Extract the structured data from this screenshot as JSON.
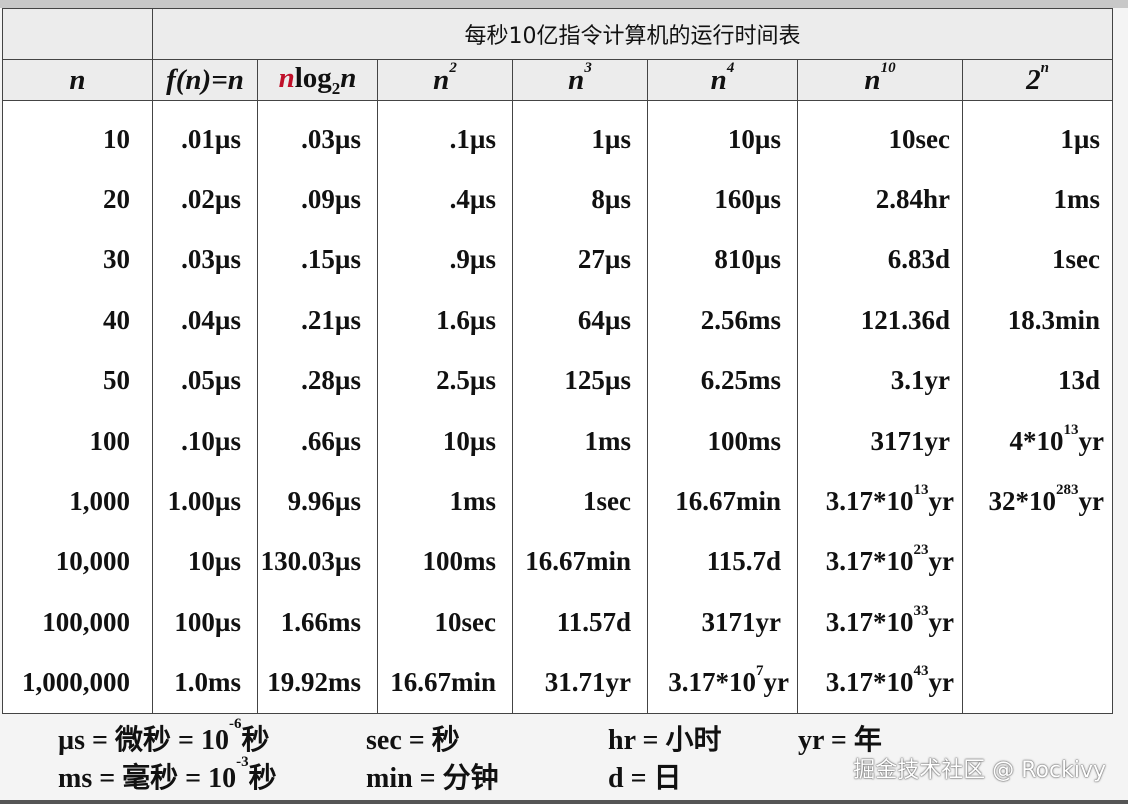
{
  "table": {
    "title": "每秒10亿指令计算机的运行时间表",
    "headers": [
      "n",
      "f(n)=n",
      "nlog_2n",
      "n^2",
      "n^3",
      "n^4",
      "n^10",
      "2^n"
    ],
    "rows": [
      [
        "10",
        ".01µs",
        ".03µs",
        ".1µs",
        "1µs",
        "10µs",
        "10sec",
        "1µs"
      ],
      [
        "20",
        ".02µs",
        ".09µs",
        ".4µs",
        "8µs",
        "160µs",
        "2.84hr",
        "1ms"
      ],
      [
        "30",
        ".03µs",
        ".15µs",
        ".9µs",
        "27µs",
        "810µs",
        "6.83d",
        "1sec"
      ],
      [
        "40",
        ".04µs",
        ".21µs",
        "1.6µs",
        "64µs",
        "2.56ms",
        "121.36d",
        "18.3min"
      ],
      [
        "50",
        ".05µs",
        ".28µs",
        "2.5µs",
        "125µs",
        "6.25ms",
        "3.1yr",
        "13d"
      ],
      [
        "100",
        ".10µs",
        ".66µs",
        "10µs",
        "1ms",
        "100ms",
        "3171yr",
        "4*10^13^yr"
      ],
      [
        "1,000",
        "1.00µs",
        "9.96µs",
        "1ms",
        "1sec",
        "16.67min",
        "3.17*10^13^yr",
        "32*10^283^yr"
      ],
      [
        "10,000",
        "10µs",
        "130.03µs",
        "100ms",
        "16.67min",
        "115.7d",
        "3.17*10^23^yr",
        ""
      ],
      [
        "100,000",
        "100µs",
        "1.66ms",
        "10sec",
        "11.57d",
        "3171yr",
        "3.17*10^33^yr",
        ""
      ],
      [
        "1,000,000",
        "1.0ms",
        "19.92ms",
        "16.67min",
        "31.71yr",
        "3.17*10^7^yr",
        "3.17*10^43^yr",
        ""
      ]
    ]
  },
  "legend": [
    "µs = 微秒 = 10^-6^秒",
    "sec = 秒",
    "hr = 小时",
    "yr = 年",
    "ms = 毫秒 = 10^-3^秒",
    "min = 分钟",
    "d = 日"
  ],
  "watermark": "掘金技术社区 @ Rockivy",
  "colors": {
    "highlight": "#c0102a",
    "header_bg": "#ececec",
    "border": "#444444"
  }
}
